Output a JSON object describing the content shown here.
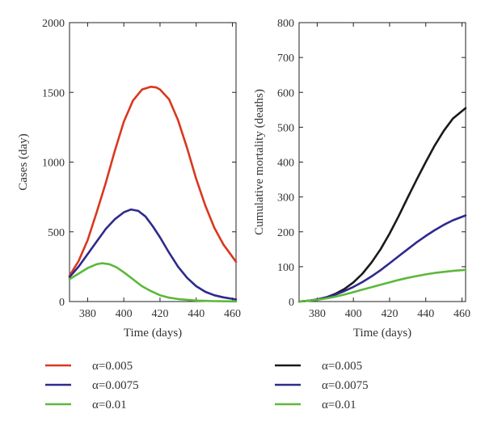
{
  "chart_data": [
    {
      "type": "line",
      "xlabel": "Time (days)",
      "ylabel": "Cases (day)",
      "xlim": [
        370,
        462
      ],
      "ylim": [
        0,
        2000
      ],
      "xticks": [
        380,
        400,
        420,
        440,
        460
      ],
      "yticks": [
        0,
        500,
        1000,
        1500,
        2000
      ],
      "grid": false,
      "legend": "below",
      "series": [
        {
          "name": "α=0.005",
          "color": "#d9381e",
          "x": [
            370,
            375,
            380,
            385,
            390,
            395,
            400,
            405,
            410,
            415,
            418,
            420,
            425,
            430,
            435,
            440,
            445,
            450,
            455,
            462
          ],
          "y": [
            185,
            290,
            440,
            640,
            850,
            1080,
            1290,
            1440,
            1520,
            1540,
            1535,
            1520,
            1450,
            1300,
            1100,
            880,
            690,
            530,
            410,
            285
          ]
        },
        {
          "name": "α=0.0075",
          "color": "#2e2a8c",
          "x": [
            370,
            375,
            380,
            385,
            390,
            395,
            400,
            404,
            408,
            412,
            416,
            420,
            425,
            430,
            435,
            440,
            445,
            450,
            455,
            462
          ],
          "y": [
            175,
            250,
            340,
            430,
            520,
            590,
            640,
            660,
            650,
            610,
            540,
            460,
            350,
            250,
            170,
            110,
            70,
            45,
            30,
            15
          ]
        },
        {
          "name": "α=0.01",
          "color": "#5cb83a",
          "x": [
            370,
            375,
            380,
            385,
            388,
            392,
            396,
            400,
            405,
            410,
            415,
            420,
            425,
            430,
            440,
            450,
            462
          ],
          "y": [
            160,
            200,
            240,
            268,
            275,
            268,
            245,
            210,
            160,
            110,
            75,
            45,
            28,
            18,
            7,
            3,
            1
          ]
        }
      ]
    },
    {
      "type": "line",
      "xlabel": "Time (days)",
      "ylabel": "Cumulative mortality (deaths)",
      "xlim": [
        370,
        462
      ],
      "ylim": [
        0,
        800
      ],
      "xticks": [
        380,
        400,
        420,
        440,
        460
      ],
      "yticks": [
        0,
        100,
        200,
        300,
        400,
        500,
        600,
        700,
        800
      ],
      "grid": false,
      "legend": "below",
      "series": [
        {
          "name": "α=0.005",
          "color": "#1a1a1a",
          "x": [
            370,
            375,
            380,
            385,
            390,
            395,
            400,
            405,
            410,
            415,
            420,
            425,
            430,
            435,
            440,
            445,
            450,
            455,
            462
          ],
          "y": [
            0,
            2,
            6,
            12,
            22,
            36,
            55,
            80,
            112,
            150,
            195,
            245,
            298,
            350,
            400,
            448,
            490,
            525,
            555
          ]
        },
        {
          "name": "α=0.0075",
          "color": "#2e2a8c",
          "x": [
            370,
            375,
            380,
            385,
            390,
            395,
            400,
            405,
            410,
            415,
            420,
            425,
            430,
            435,
            440,
            445,
            450,
            455,
            462
          ],
          "y": [
            0,
            2,
            6,
            12,
            20,
            30,
            42,
            56,
            72,
            90,
            110,
            130,
            150,
            170,
            188,
            205,
            220,
            233,
            247
          ]
        },
        {
          "name": "α=0.01",
          "color": "#5cb83a",
          "x": [
            370,
            375,
            380,
            385,
            390,
            395,
            400,
            405,
            410,
            415,
            420,
            425,
            430,
            435,
            440,
            445,
            450,
            455,
            462
          ],
          "y": [
            0,
            2,
            5,
            9,
            14,
            20,
            27,
            34,
            41,
            48,
            55,
            62,
            68,
            73,
            78,
            82,
            85,
            88,
            91
          ]
        }
      ]
    }
  ]
}
